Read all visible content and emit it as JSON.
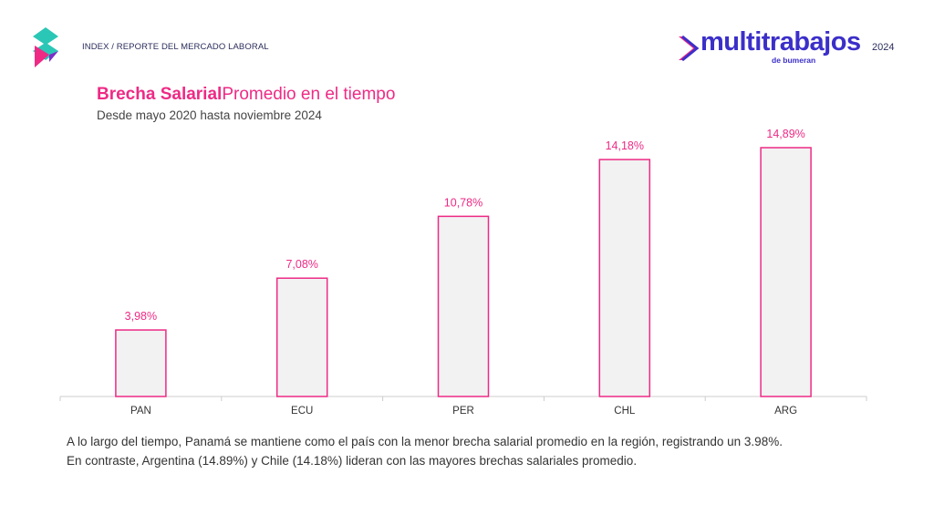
{
  "header": {
    "breadcrumb": "INDEX / REPORTE DEL MERCADO LABORAL",
    "brand_name": "multitrabajos",
    "brand_sub": "de bumeran",
    "year": "2024"
  },
  "colors": {
    "accent": "#ee2a85",
    "brand": "#3b2fc9",
    "bar_fill": "#f2f2f2"
  },
  "chart_data": {
    "type": "bar",
    "title_strong": "Brecha Salarial",
    "title_rest": "Promedio en el tiempo",
    "subtitle": "Desde mayo 2020 hasta noviembre 2024",
    "categories": [
      "PAN",
      "ECU",
      "PER",
      "CHL",
      "ARG"
    ],
    "values": [
      3.98,
      7.08,
      10.78,
      14.18,
      14.89
    ],
    "value_labels": [
      "3,98%",
      "7,08%",
      "10,78%",
      "14,18%",
      "14,89%"
    ],
    "ylim": [
      0,
      15
    ],
    "grid": false,
    "legend": "none"
  },
  "description": {
    "line1": "A lo largo del tiempo, Panamá se mantiene como el país con la menor brecha salarial promedio en la región, registrando un 3.98%.",
    "line2": "En contraste, Argentina (14.89%) y Chile (14.18%) lideran con las mayores brechas salariales promedio."
  }
}
